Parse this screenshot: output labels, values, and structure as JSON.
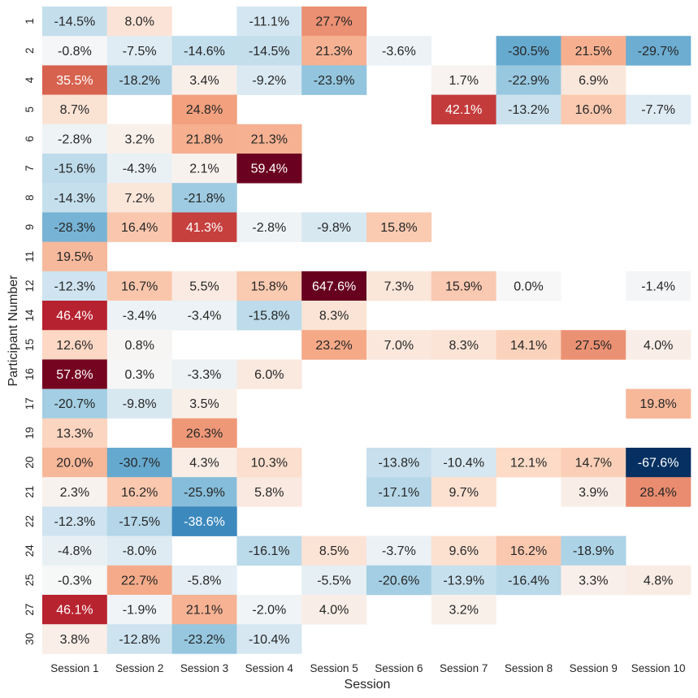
{
  "chart_data": {
    "type": "heatmap",
    "title": "",
    "xlabel": "Session",
    "ylabel": "Participant Number",
    "legend": "none",
    "grid": false,
    "columns": [
      "Session 1",
      "Session 2",
      "Session 3",
      "Session 4",
      "Session 5",
      "Session 6",
      "Session 7",
      "Session 8",
      "Session 9",
      "Session 10"
    ],
    "rows": [
      "1",
      "2",
      "4",
      "5",
      "6",
      "7",
      "8",
      "9",
      "11",
      "12",
      "14",
      "15",
      "16",
      "17",
      "19",
      "20",
      "21",
      "22",
      "24",
      "25",
      "27",
      "30"
    ],
    "color_scale": {
      "min": -60,
      "max": 60,
      "low": "#053061",
      "mid": "#f7f7f7",
      "high": "#67001f"
    },
    "values": [
      [
        -14.5,
        8.0,
        null,
        -11.1,
        27.7,
        null,
        null,
        null,
        null,
        null
      ],
      [
        -0.8,
        -7.5,
        -14.6,
        -14.5,
        21.3,
        -3.6,
        null,
        -30.5,
        21.5,
        -29.7
      ],
      [
        35.5,
        -18.2,
        3.4,
        -9.2,
        -23.9,
        null,
        1.7,
        -22.9,
        6.9,
        null
      ],
      [
        8.7,
        null,
        24.8,
        null,
        null,
        null,
        42.1,
        -13.2,
        16.0,
        -7.7
      ],
      [
        -2.8,
        3.2,
        21.8,
        21.3,
        null,
        null,
        null,
        null,
        null,
        null
      ],
      [
        -15.6,
        -4.3,
        2.1,
        59.4,
        null,
        null,
        null,
        null,
        null,
        null
      ],
      [
        -14.3,
        7.2,
        -21.8,
        null,
        null,
        null,
        null,
        null,
        null,
        null
      ],
      [
        -28.3,
        16.4,
        41.3,
        -2.8,
        -9.8,
        15.8,
        null,
        null,
        null,
        null
      ],
      [
        19.5,
        null,
        null,
        null,
        null,
        null,
        null,
        null,
        null,
        null
      ],
      [
        -12.3,
        16.7,
        5.5,
        15.8,
        647.6,
        7.3,
        15.9,
        0.0,
        null,
        -1.4
      ],
      [
        46.4,
        -3.4,
        -3.4,
        -15.8,
        8.3,
        null,
        null,
        null,
        null,
        null
      ],
      [
        12.6,
        0.8,
        null,
        null,
        23.2,
        7.0,
        8.3,
        14.1,
        27.5,
        4.0
      ],
      [
        57.8,
        0.3,
        -3.3,
        6.0,
        null,
        null,
        null,
        null,
        null,
        null
      ],
      [
        -20.7,
        -9.8,
        3.5,
        null,
        null,
        null,
        null,
        null,
        null,
        19.8
      ],
      [
        13.3,
        null,
        26.3,
        null,
        null,
        null,
        null,
        null,
        null,
        null
      ],
      [
        20.0,
        -30.7,
        4.3,
        10.3,
        null,
        -13.8,
        -10.4,
        12.1,
        14.7,
        -67.6
      ],
      [
        2.3,
        16.2,
        -25.9,
        5.8,
        null,
        -17.1,
        9.7,
        null,
        3.9,
        28.4
      ],
      [
        -12.3,
        -17.5,
        -38.6,
        null,
        null,
        null,
        null,
        null,
        null,
        null
      ],
      [
        -4.8,
        -8.0,
        null,
        -16.1,
        8.5,
        -3.7,
        9.6,
        16.2,
        -18.9,
        null
      ],
      [
        -0.3,
        22.7,
        -5.8,
        null,
        -5.5,
        -20.6,
        -13.9,
        -16.4,
        3.3,
        4.8
      ],
      [
        46.1,
        -1.9,
        21.1,
        -2.0,
        4.0,
        null,
        3.2,
        null,
        null,
        null
      ],
      [
        3.8,
        -12.8,
        -23.2,
        -10.4,
        null,
        null,
        null,
        null,
        null,
        null
      ]
    ]
  }
}
